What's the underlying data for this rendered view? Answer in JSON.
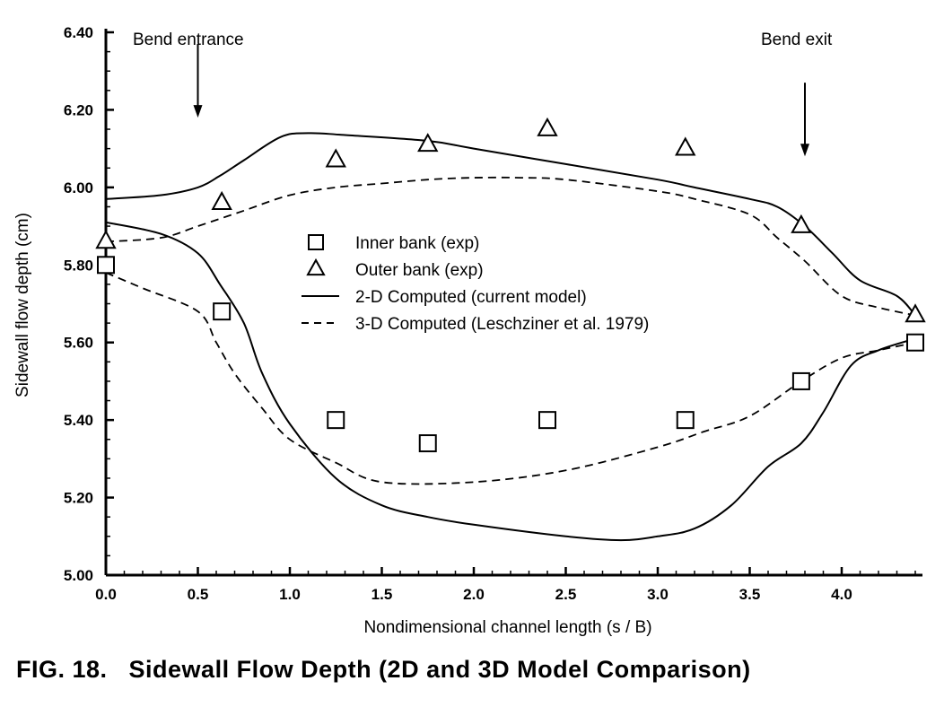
{
  "caption": "FIG. 18.   Sidewall Flow Depth (2D and 3D Model Comparison)",
  "chart_data": {
    "type": "line",
    "xlabel": "Nondimensional channel length (s / B)",
    "ylabel": "Sidewall flow depth (cm)",
    "xlim": [
      0,
      4.4
    ],
    "ylim": [
      5.0,
      6.4
    ],
    "xticks": [
      "0.0",
      "0.5",
      "1.0",
      "1.5",
      "2.0",
      "2.5",
      "3.0",
      "3.5",
      "4.0"
    ],
    "xtick_values": [
      0,
      0.5,
      1.0,
      1.5,
      2.0,
      2.5,
      3.0,
      3.5,
      4.0
    ],
    "yticks": [
      "5.00",
      "5.20",
      "5.40",
      "5.60",
      "5.80",
      "6.00",
      "6.20",
      "6.40"
    ],
    "ytick_values": [
      5.0,
      5.2,
      5.4,
      5.6,
      5.8,
      6.0,
      6.2,
      6.4
    ],
    "grid": false,
    "legend_position": "center",
    "series": [
      {
        "name": "Inner bank (exp)",
        "kind": "scatter",
        "marker": "square",
        "x": [
          0.0,
          0.63,
          1.25,
          1.75,
          2.4,
          3.15,
          3.78,
          4.4
        ],
        "y": [
          5.8,
          5.68,
          5.4,
          5.34,
          5.4,
          5.4,
          5.5,
          5.6
        ]
      },
      {
        "name": "Outer bank (exp)",
        "kind": "scatter",
        "marker": "triangle",
        "x": [
          0.0,
          0.63,
          1.25,
          1.75,
          2.4,
          3.15,
          3.78,
          4.4
        ],
        "y": [
          5.86,
          5.96,
          6.07,
          6.11,
          6.15,
          6.1,
          5.9,
          5.67
        ]
      },
      {
        "name": "2-D Computed (current model)",
        "kind": "line",
        "dash": "solid",
        "segments": [
          {
            "x": [
              0.0,
              0.3,
              0.5,
              0.62,
              0.75,
              0.95,
              1.1,
              1.3,
              1.75,
              2.0,
              2.5,
              3.0,
              3.2,
              3.5,
              3.65,
              3.8,
              3.95,
              4.1,
              4.3,
              4.4
            ],
            "y": [
              5.97,
              5.98,
              6.0,
              6.03,
              6.07,
              6.13,
              6.14,
              6.135,
              6.12,
              6.1,
              6.06,
              6.02,
              6.0,
              5.97,
              5.95,
              5.9,
              5.83,
              5.76,
              5.72,
              5.67
            ]
          },
          {
            "x": [
              0.0,
              0.3,
              0.5,
              0.62,
              0.75,
              0.85,
              1.0,
              1.25,
              1.5,
              1.75,
              2.0,
              2.5,
              2.8,
              3.0,
              3.2,
              3.4,
              3.6,
              3.78,
              3.9,
              4.05,
              4.2,
              4.4
            ],
            "y": [
              5.91,
              5.88,
              5.83,
              5.75,
              5.65,
              5.52,
              5.39,
              5.25,
              5.18,
              5.15,
              5.13,
              5.1,
              5.09,
              5.1,
              5.12,
              5.18,
              5.28,
              5.34,
              5.42,
              5.54,
              5.58,
              5.61
            ]
          }
        ]
      },
      {
        "name": "3-D Computed (Leschziner et al. 1979)",
        "kind": "line",
        "dash": "dashed",
        "segments": [
          {
            "x": [
              0.0,
              0.3,
              0.5,
              0.75,
              1.0,
              1.25,
              1.5,
              1.75,
              2.0,
              2.25,
              2.5,
              3.0,
              3.2,
              3.5,
              3.65,
              3.8,
              4.0,
              4.2,
              4.4
            ],
            "y": [
              5.86,
              5.87,
              5.9,
              5.94,
              5.98,
              6.0,
              6.01,
              6.02,
              6.025,
              6.025,
              6.02,
              5.99,
              5.97,
              5.93,
              5.87,
              5.81,
              5.72,
              5.69,
              5.67
            ]
          },
          {
            "x": [
              0.0,
              0.2,
              0.5,
              0.6,
              0.7,
              0.85,
              1.0,
              1.25,
              1.5,
              2.0,
              2.5,
              3.0,
              3.25,
              3.5,
              3.78,
              4.0,
              4.2,
              4.4
            ],
            "y": [
              5.78,
              5.74,
              5.68,
              5.6,
              5.52,
              5.43,
              5.35,
              5.29,
              5.24,
              5.24,
              5.27,
              5.33,
              5.37,
              5.41,
              5.5,
              5.56,
              5.58,
              5.6
            ]
          }
        ]
      }
    ],
    "annotations": [
      {
        "text": "Bend entrance",
        "x": 0.5,
        "arrow_from_y": 6.37,
        "arrow_to_y": 6.18
      },
      {
        "text": "Bend exit",
        "x": 3.8,
        "arrow_from_y": 6.27,
        "arrow_to_y": 6.08
      }
    ]
  }
}
